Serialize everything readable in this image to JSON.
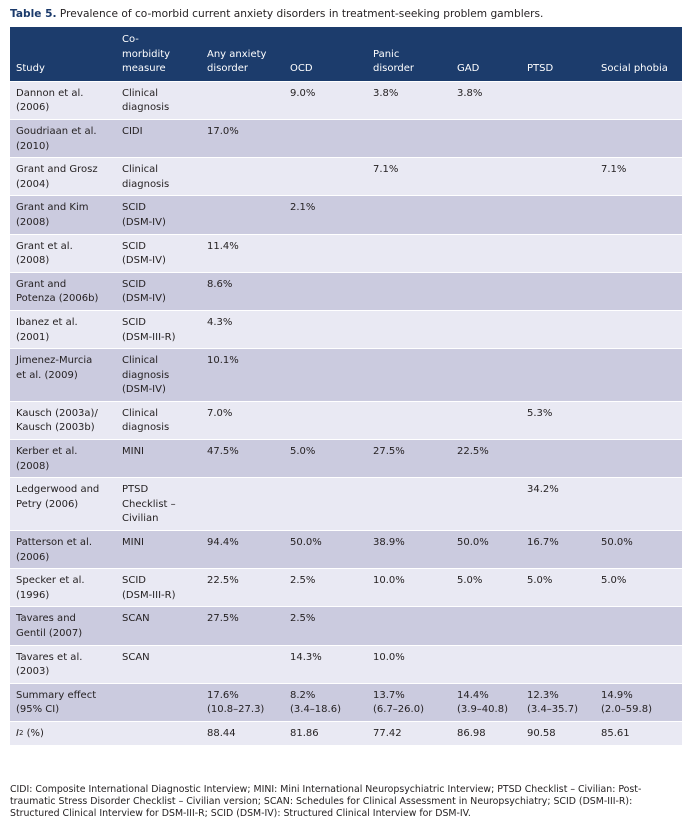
{
  "caption": {
    "label": "Table 5.",
    "text": "Prevalence of co-morbid current anxiety disorders in treatment-seeking problem gamblers."
  },
  "headers": [
    "Study",
    "Co-\nmorbidity\nmeasure",
    "Any anxiety\ndisorder",
    "OCD",
    "Panic\ndisorder",
    "GAD",
    "PTSD",
    "Social phobia"
  ],
  "rows": [
    [
      "Dannon et al.\n(2006)",
      "Clinical\ndiagnosis",
      "",
      "9.0%",
      "3.8%",
      "3.8%",
      "",
      ""
    ],
    [
      "Goudriaan et al.\n(2010)",
      "CIDI",
      "17.0%",
      "",
      "",
      "",
      "",
      ""
    ],
    [
      "Grant and Grosz\n(2004)",
      "Clinical\ndiagnosis",
      "",
      "",
      "7.1%",
      "",
      "",
      "7.1%"
    ],
    [
      "Grant and Kim\n(2008)",
      "SCID\n(DSM-IV)",
      "",
      "2.1%",
      "",
      "",
      "",
      ""
    ],
    [
      "Grant et al.\n(2008)",
      "SCID\n(DSM-IV)",
      "11.4%",
      "",
      "",
      "",
      "",
      ""
    ],
    [
      "Grant and\nPotenza (2006b)",
      "SCID\n(DSM-IV)",
      "8.6%",
      "",
      "",
      "",
      "",
      ""
    ],
    [
      "Ibanez et al.\n(2001)",
      "SCID\n(DSM-III-R)",
      "4.3%",
      "",
      "",
      "",
      "",
      ""
    ],
    [
      "Jimenez-Murcia\net al. (2009)",
      "Clinical\ndiagnosis\n(DSM-IV)",
      "10.1%",
      "",
      "",
      "",
      "",
      ""
    ],
    [
      "Kausch (2003a)/\nKausch (2003b)",
      "Clinical\ndiagnosis",
      "7.0%",
      "",
      "",
      "",
      "5.3%",
      ""
    ],
    [
      "Kerber et al.\n(2008)",
      "MINI",
      "47.5%",
      "5.0%",
      "27.5%",
      "22.5%",
      "",
      ""
    ],
    [
      "Ledgerwood and\nPetry (2006)",
      "PTSD\nChecklist –\nCivilian",
      "",
      "",
      "",
      "",
      "34.2%",
      ""
    ],
    [
      "Patterson et al.\n(2006)",
      "MINI",
      "94.4%",
      "50.0%",
      "38.9%",
      "50.0%",
      "16.7%",
      "50.0%"
    ],
    [
      "Specker et al.\n(1996)",
      "SCID\n(DSM-III-R)",
      "22.5%",
      "2.5%",
      "10.0%",
      "5.0%",
      "5.0%",
      "5.0%"
    ],
    [
      "Tavares and\nGentil (2007)",
      "SCAN",
      "27.5%",
      "2.5%",
      "",
      "",
      "",
      ""
    ],
    [
      "Tavares et al.\n(2003)",
      "SCAN",
      "",
      "14.3%",
      "10.0%",
      "",
      "",
      ""
    ],
    [
      "Summary effect\n(95% CI)",
      "",
      "17.6%\n(10.8–27.3)",
      "8.2%\n(3.4–18.6)",
      "13.7%\n(6.7–26.0)",
      "14.4%\n(3.9–40.8)",
      "12.3%\n(3.4–35.7)",
      "14.9%\n(2.0–59.8)"
    ]
  ],
  "i2_row": {
    "label_base": "I",
    "label_sup": "2",
    "label_suffix": " (%)",
    "values": [
      "",
      "88.44",
      "81.86",
      "77.42",
      "86.98",
      "90.58",
      "85.61"
    ]
  },
  "footnote": "CIDI: Composite International Diagnostic Interview; MINI: Mini International Neuropsychiatric Interview; PTSD Checklist – Civilian: Post-traumatic Stress Disorder Checklist – Civilian version; SCAN: Schedules for Clinical Assessment in Neuropsychiatry; SCID (DSM-III-R): Structured Clinical Interview for DSM-III-R; SCID (DSM-IV): Structured Clinical Interview for DSM-IV.",
  "colors": {
    "header_bg": "#1c3c6c",
    "row_light": "#e9e9f3",
    "row_dark": "#cbcbdf",
    "caption_label": "#1b3a6b"
  }
}
